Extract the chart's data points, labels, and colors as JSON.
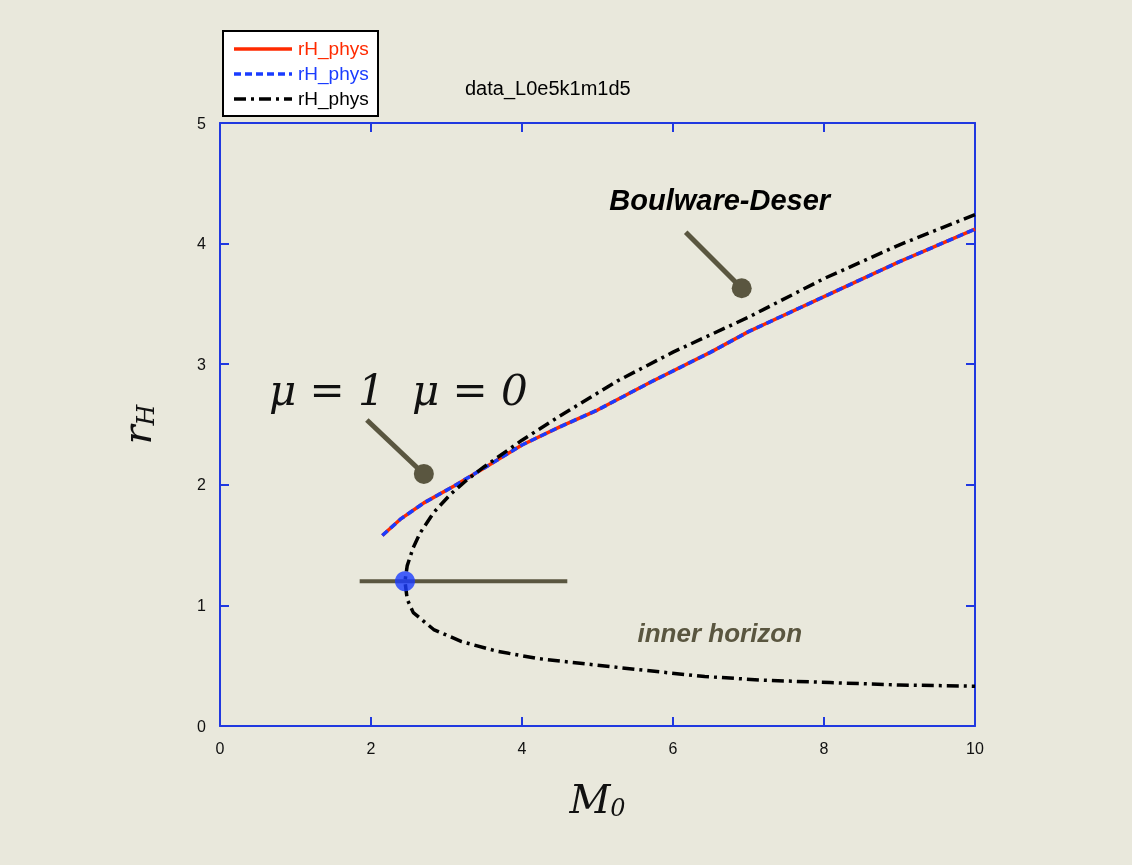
{
  "chart_data": {
    "type": "line",
    "title": "data_L0e5k1m1d5",
    "xlabel": "M$_{0}$",
    "ylabel": "r$_{H}$",
    "xlim": [
      0,
      10
    ],
    "xticks": [
      0,
      2,
      4,
      6,
      8,
      10
    ],
    "ylim": [
      0,
      5
    ],
    "yticks": [
      0,
      1,
      2,
      3,
      4,
      5
    ],
    "grid": false,
    "legend": "top left",
    "marker": "none",
    "series": [
      {
        "name": "rH_phys",
        "color": "#ff2a00",
        "line_style": "solid",
        "x": [
          2.15,
          2.4,
          2.7,
          3.1,
          3.5,
          4,
          4.5,
          5,
          5.7,
          6.5,
          7,
          8,
          9,
          10
        ],
        "values": [
          1.58,
          1.72,
          1.85,
          1.99,
          2.14,
          2.33,
          2.48,
          2.62,
          2.85,
          3.1,
          3.27,
          3.56,
          3.85,
          4.12
        ]
      },
      {
        "name": "rH_phys",
        "color": "#1a3cff",
        "line_style": "dashed",
        "x": [
          2.15,
          2.4,
          2.7,
          3.1,
          3.5,
          4,
          4.5,
          5,
          5.7,
          6.5,
          7,
          8,
          9,
          10
        ],
        "values": [
          1.58,
          1.72,
          1.85,
          1.99,
          2.14,
          2.33,
          2.48,
          2.62,
          2.85,
          3.1,
          3.27,
          3.56,
          3.85,
          4.12
        ]
      },
      {
        "name": "rH_phys",
        "color": "#000000",
        "line_style": "dashdot",
        "x": [
          10,
          9,
          8,
          7,
          6,
          5.26,
          4.5,
          4,
          3.5,
          3.27,
          3.05,
          2.83,
          2.65,
          2.56,
          2.48,
          2.45,
          2.48,
          2.56,
          2.83,
          3.2,
          3.67,
          4.2,
          4.77,
          5.5,
          6.42,
          7.2,
          8.08,
          9,
          10
        ],
        "values": [
          4.24,
          3.99,
          3.71,
          3.39,
          3.1,
          2.86,
          2.57,
          2.37,
          2.15,
          2.04,
          1.92,
          1.77,
          1.6,
          1.48,
          1.33,
          1.2,
          1.05,
          0.94,
          0.8,
          0.7,
          0.62,
          0.56,
          0.52,
          0.47,
          0.41,
          0.38,
          0.36,
          0.34,
          0.33
        ]
      },
      {
        "type": "scatter",
        "color": "#1a3cff",
        "marker": "circle",
        "x": [
          2.45
        ],
        "values": [
          1.2
        ],
        "xerrors": [
          [
            1.85,
            4.6
          ]
        ]
      }
    ],
    "annotations": [
      {
        "text": "Boulware-Deser",
        "x": 6.91,
        "y": 3.63
      },
      {
        "text": "μ = 1",
        "x": 2.7,
        "y": 2.09
      },
      "μ = 0",
      "inner horizon"
    ]
  }
}
